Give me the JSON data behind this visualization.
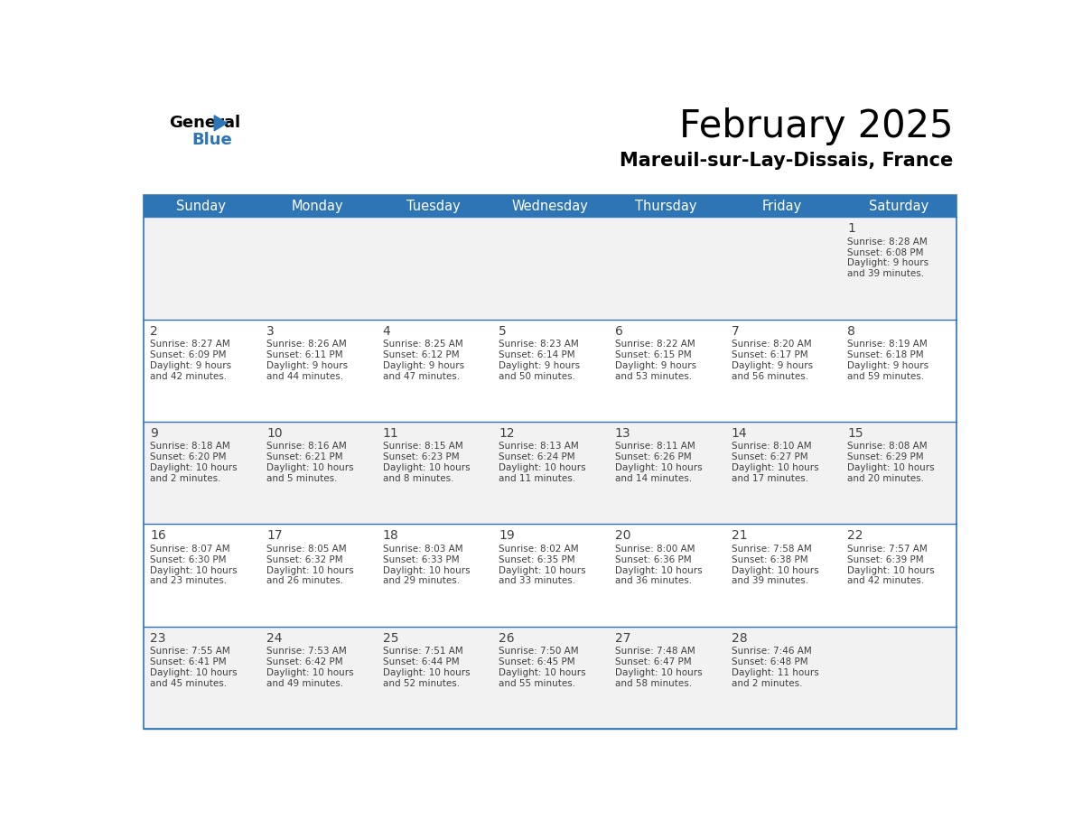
{
  "title": "February 2025",
  "subtitle": "Mareuil-sur-Lay-Dissais, France",
  "header_bg": "#2E75B6",
  "header_text_color": "#FFFFFF",
  "cell_bg_odd": "#F2F2F2",
  "cell_bg_even": "#FFFFFF",
  "border_color": "#2E75B6",
  "text_color": "#404040",
  "days_of_week": [
    "Sunday",
    "Monday",
    "Tuesday",
    "Wednesday",
    "Thursday",
    "Friday",
    "Saturday"
  ],
  "calendar_data": [
    [
      {
        "day": null
      },
      {
        "day": null
      },
      {
        "day": null
      },
      {
        "day": null
      },
      {
        "day": null
      },
      {
        "day": null
      },
      {
        "day": 1,
        "sunrise": "8:28 AM",
        "sunset": "6:08 PM",
        "daylight_h": "9 hours",
        "daylight_m": "and 39 minutes."
      }
    ],
    [
      {
        "day": 2,
        "sunrise": "8:27 AM",
        "sunset": "6:09 PM",
        "daylight_h": "9 hours",
        "daylight_m": "and 42 minutes."
      },
      {
        "day": 3,
        "sunrise": "8:26 AM",
        "sunset": "6:11 PM",
        "daylight_h": "9 hours",
        "daylight_m": "and 44 minutes."
      },
      {
        "day": 4,
        "sunrise": "8:25 AM",
        "sunset": "6:12 PM",
        "daylight_h": "9 hours",
        "daylight_m": "and 47 minutes."
      },
      {
        "day": 5,
        "sunrise": "8:23 AM",
        "sunset": "6:14 PM",
        "daylight_h": "9 hours",
        "daylight_m": "and 50 minutes."
      },
      {
        "day": 6,
        "sunrise": "8:22 AM",
        "sunset": "6:15 PM",
        "daylight_h": "9 hours",
        "daylight_m": "and 53 minutes."
      },
      {
        "day": 7,
        "sunrise": "8:20 AM",
        "sunset": "6:17 PM",
        "daylight_h": "9 hours",
        "daylight_m": "and 56 minutes."
      },
      {
        "day": 8,
        "sunrise": "8:19 AM",
        "sunset": "6:18 PM",
        "daylight_h": "9 hours",
        "daylight_m": "and 59 minutes."
      }
    ],
    [
      {
        "day": 9,
        "sunrise": "8:18 AM",
        "sunset": "6:20 PM",
        "daylight_h": "10 hours",
        "daylight_m": "and 2 minutes."
      },
      {
        "day": 10,
        "sunrise": "8:16 AM",
        "sunset": "6:21 PM",
        "daylight_h": "10 hours",
        "daylight_m": "and 5 minutes."
      },
      {
        "day": 11,
        "sunrise": "8:15 AM",
        "sunset": "6:23 PM",
        "daylight_h": "10 hours",
        "daylight_m": "and 8 minutes."
      },
      {
        "day": 12,
        "sunrise": "8:13 AM",
        "sunset": "6:24 PM",
        "daylight_h": "10 hours",
        "daylight_m": "and 11 minutes."
      },
      {
        "day": 13,
        "sunrise": "8:11 AM",
        "sunset": "6:26 PM",
        "daylight_h": "10 hours",
        "daylight_m": "and 14 minutes."
      },
      {
        "day": 14,
        "sunrise": "8:10 AM",
        "sunset": "6:27 PM",
        "daylight_h": "10 hours",
        "daylight_m": "and 17 minutes."
      },
      {
        "day": 15,
        "sunrise": "8:08 AM",
        "sunset": "6:29 PM",
        "daylight_h": "10 hours",
        "daylight_m": "and 20 minutes."
      }
    ],
    [
      {
        "day": 16,
        "sunrise": "8:07 AM",
        "sunset": "6:30 PM",
        "daylight_h": "10 hours",
        "daylight_m": "and 23 minutes."
      },
      {
        "day": 17,
        "sunrise": "8:05 AM",
        "sunset": "6:32 PM",
        "daylight_h": "10 hours",
        "daylight_m": "and 26 minutes."
      },
      {
        "day": 18,
        "sunrise": "8:03 AM",
        "sunset": "6:33 PM",
        "daylight_h": "10 hours",
        "daylight_m": "and 29 minutes."
      },
      {
        "day": 19,
        "sunrise": "8:02 AM",
        "sunset": "6:35 PM",
        "daylight_h": "10 hours",
        "daylight_m": "and 33 minutes."
      },
      {
        "day": 20,
        "sunrise": "8:00 AM",
        "sunset": "6:36 PM",
        "daylight_h": "10 hours",
        "daylight_m": "and 36 minutes."
      },
      {
        "day": 21,
        "sunrise": "7:58 AM",
        "sunset": "6:38 PM",
        "daylight_h": "10 hours",
        "daylight_m": "and 39 minutes."
      },
      {
        "day": 22,
        "sunrise": "7:57 AM",
        "sunset": "6:39 PM",
        "daylight_h": "10 hours",
        "daylight_m": "and 42 minutes."
      }
    ],
    [
      {
        "day": 23,
        "sunrise": "7:55 AM",
        "sunset": "6:41 PM",
        "daylight_h": "10 hours",
        "daylight_m": "and 45 minutes."
      },
      {
        "day": 24,
        "sunrise": "7:53 AM",
        "sunset": "6:42 PM",
        "daylight_h": "10 hours",
        "daylight_m": "and 49 minutes."
      },
      {
        "day": 25,
        "sunrise": "7:51 AM",
        "sunset": "6:44 PM",
        "daylight_h": "10 hours",
        "daylight_m": "and 52 minutes."
      },
      {
        "day": 26,
        "sunrise": "7:50 AM",
        "sunset": "6:45 PM",
        "daylight_h": "10 hours",
        "daylight_m": "and 55 minutes."
      },
      {
        "day": 27,
        "sunrise": "7:48 AM",
        "sunset": "6:47 PM",
        "daylight_h": "10 hours",
        "daylight_m": "and 58 minutes."
      },
      {
        "day": 28,
        "sunrise": "7:46 AM",
        "sunset": "6:48 PM",
        "daylight_h": "11 hours",
        "daylight_m": "and 2 minutes."
      },
      {
        "day": null
      }
    ]
  ]
}
